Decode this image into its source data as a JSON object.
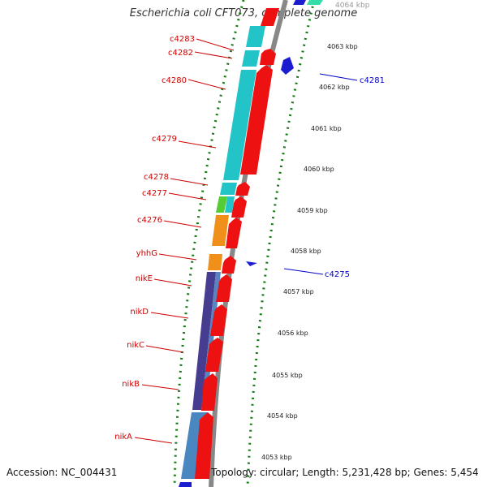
{
  "title": "Escherichia coli CFT073, complete genome",
  "accession": "Accession: NC_004431",
  "summary": "Topology: circular; Length: 5,231,428 bp; Genes: 5,454",
  "colors": {
    "gene_label": "#cc0000",
    "blue_label": "#0000cc",
    "tick": "#117711",
    "backbone": "#888888"
  },
  "ticks": [
    "4063 kbp",
    "4062 kbp",
    "4061 kbp",
    "4060 kbp",
    "4059 kbp",
    "4058 kbp",
    "4057 kbp",
    "4056 kbp",
    "4055 kbp",
    "4054 kbp",
    "4053 kbp"
  ],
  "left_labels": [
    "c4283",
    "c4282",
    "c4280",
    "c4279",
    "c4278",
    "c4277",
    "c4276",
    "yhhG",
    "nikE",
    "nikD",
    "nikC",
    "nikB",
    "nikA"
  ],
  "right_labels": [
    "c4281",
    "c4275"
  ]
}
